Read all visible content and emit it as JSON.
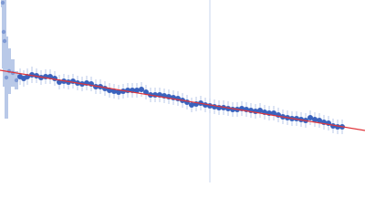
{
  "chart_data": {
    "type": "scatter",
    "xlim": [
      0,
      400
    ],
    "ylim": [
      0,
      200
    ],
    "series": [
      {
        "color": "#3a62bd",
        "error_color": "#b9c9e8",
        "x": [
          3,
          4,
          5,
          7,
          10,
          14,
          18,
          22,
          26,
          30,
          35,
          40,
          45,
          50,
          55,
          60,
          65,
          70,
          75,
          80,
          85,
          90,
          95,
          100,
          105,
          110,
          115,
          120,
          125,
          130,
          135,
          140,
          145,
          150,
          155,
          160,
          165,
          170,
          175,
          180,
          185,
          190,
          195,
          200,
          205,
          210,
          215,
          220,
          225,
          230,
          235,
          240,
          245,
          250,
          255,
          260,
          265,
          270,
          275,
          280,
          285,
          290,
          295,
          300,
          305,
          310,
          315,
          320,
          325,
          330,
          335,
          340,
          345,
          350,
          355,
          360,
          365,
          370,
          375
        ],
        "values": [
          197,
          165,
          155,
          115,
          122,
          120,
          112,
          116,
          114,
          116,
          118,
          117,
          115,
          116,
          116,
          114,
          110,
          111,
          110,
          111,
          109,
          108,
          109,
          108,
          105,
          105,
          103,
          101,
          100,
          99,
          100,
          101,
          101,
          101,
          102,
          99,
          96,
          96,
          96,
          95,
          94,
          93,
          92,
          90,
          88,
          85,
          86,
          87,
          85,
          84,
          83,
          82,
          82,
          81,
          80,
          80,
          81,
          80,
          79,
          78,
          79,
          77,
          76,
          76,
          74,
          72,
          71,
          70,
          70,
          69,
          68,
          71,
          69,
          68,
          66,
          65,
          62,
          61,
          61
        ],
        "errors": [
          5,
          40,
          50,
          45,
          25,
          15,
          10,
          9,
          9,
          9,
          9,
          8,
          8,
          8,
          8,
          8,
          8,
          8,
          8,
          8,
          8,
          8,
          8,
          8,
          8,
          8,
          8,
          8,
          8,
          8,
          8,
          8,
          8,
          8,
          8,
          8,
          8,
          8,
          8,
          8,
          8,
          8,
          8,
          8,
          8,
          8,
          8,
          8,
          8,
          8,
          8,
          8,
          8,
          8,
          8,
          8,
          8,
          8,
          8,
          8,
          8,
          8,
          8,
          8,
          8,
          8,
          8,
          8,
          8,
          8,
          8,
          8,
          8,
          8,
          8,
          8,
          8,
          8,
          8
        ]
      }
    ],
    "fit": {
      "color": "#e0353a",
      "x": [
        0,
        400
      ],
      "values": [
        123,
        57
      ]
    },
    "vline": {
      "color": "#c9d5ec",
      "x": 230
    }
  }
}
